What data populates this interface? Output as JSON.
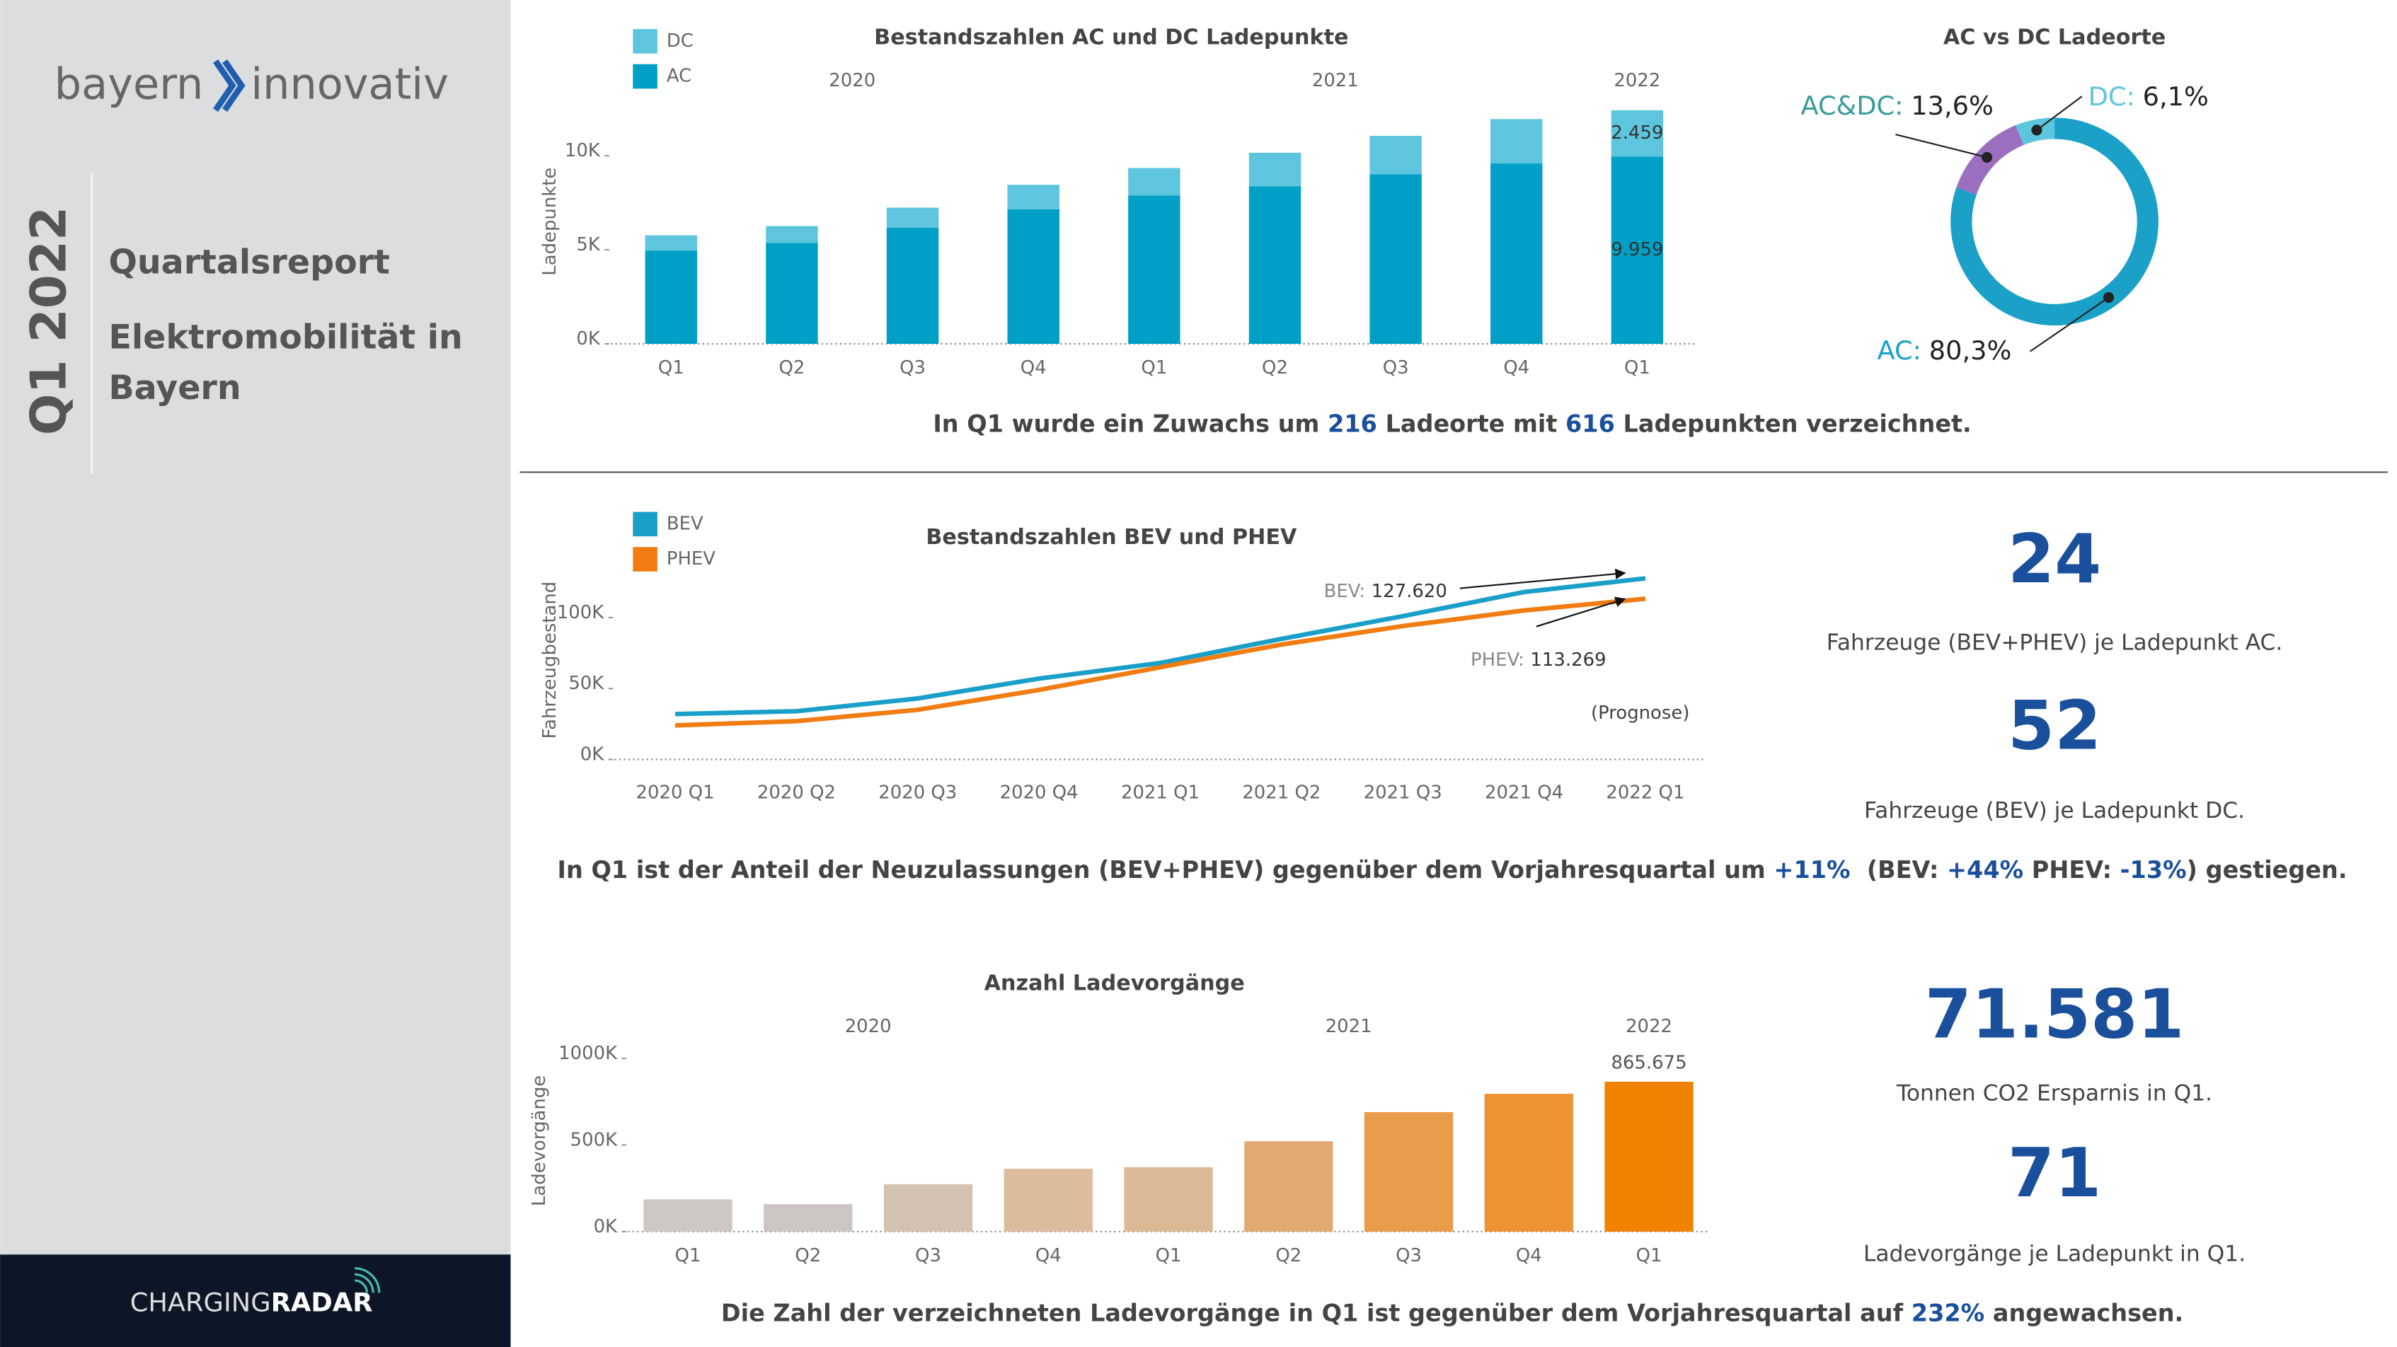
{
  "sidebar": {
    "logo_left": "bayern",
    "logo_right": "innovativ",
    "period": "Q1 2022",
    "report": "Quartalsreport",
    "subtitle_lines": [
      "Elektromobilität in",
      "Bayern"
    ],
    "footer_light": "CHARGING",
    "footer_bold": "RADAR"
  },
  "chart_data": [
    {
      "type": "bar",
      "stacked": true,
      "title": "Bestandszahlen AC und DC Ladepunkte",
      "y_label": "Ladepunkte",
      "groups": [
        "2020",
        "2021",
        "2022"
      ],
      "categories": [
        "Q1",
        "Q2",
        "Q3",
        "Q4",
        "Q1",
        "Q2",
        "Q3",
        "Q4",
        "Q1"
      ],
      "series": [
        {
          "name": "AC",
          "color": "#00a0c6",
          "values": [
            4960,
            5370,
            6180,
            7150,
            7890,
            8370,
            9020,
            9590,
            9959
          ],
          "value_labels": [
            null,
            null,
            null,
            null,
            null,
            null,
            null,
            null,
            "9.959"
          ]
        },
        {
          "name": "DC",
          "color": "#5ec5de",
          "values": [
            810,
            890,
            1060,
            1310,
            1460,
            1790,
            2040,
            2360,
            2459
          ],
          "value_labels": [
            null,
            null,
            null,
            null,
            null,
            null,
            null,
            null,
            "2.459"
          ]
        }
      ],
      "ylim": [
        0,
        13000
      ],
      "yticks": [
        {
          "value": 0,
          "label": "0K"
        },
        {
          "value": 5000,
          "label": "5K"
        },
        {
          "value": 10000,
          "label": "10K"
        }
      ]
    },
    {
      "type": "pie",
      "donut": true,
      "title": "AC vs DC Ladeorte",
      "categories": [
        "AC:",
        "AC&DC:",
        "DC:"
      ],
      "values": [
        80.3,
        13.6,
        6.1
      ],
      "value_labels": [
        "80,3%",
        "13,6%",
        "6,1%"
      ],
      "colors": [
        "#1ba0c8",
        "#9a6fc0",
        "#5ec5de"
      ],
      "label_colors": [
        "#1ba0c8",
        "#3a9a9a",
        "#5ec5de"
      ]
    },
    {
      "type": "line",
      "title": "Bestandszahlen BEV und PHEV",
      "y_label": "Fahrzeugbestand",
      "categories": [
        "2020 Q1",
        "2020 Q2",
        "2020 Q3",
        "2020 Q4",
        "2021 Q1",
        "2021 Q2",
        "2021 Q3",
        "2021 Q4",
        "2022 Q1"
      ],
      "series": [
        {
          "name": "BEV",
          "color": "#1a9fc9",
          "values": [
            32000,
            34000,
            43000,
            57000,
            68000,
            85000,
            101000,
            118000,
            127620
          ],
          "value_labels": [
            null,
            null,
            null,
            null,
            null,
            null,
            null,
            null,
            "127.620"
          ]
        },
        {
          "name": "PHEV",
          "color": "#f07c12",
          "values": [
            24000,
            27000,
            35000,
            49000,
            65000,
            81000,
            94000,
            105000,
            113269
          ],
          "value_labels": [
            null,
            null,
            null,
            null,
            null,
            null,
            null,
            null,
            "113.269"
          ]
        }
      ],
      "annotations": [
        "BEV:",
        "PHEV:"
      ],
      "note": "(Prognose)",
      "ylim": [
        0,
        140000
      ],
      "yticks": [
        {
          "value": 0,
          "label": "0K"
        },
        {
          "value": 50000,
          "label": "50K"
        },
        {
          "value": 100000,
          "label": "100K"
        }
      ]
    },
    {
      "type": "bar",
      "title": "Anzahl Ladevorgänge",
      "y_label": "Ladevorgänge",
      "groups": [
        "2020",
        "2021",
        "2022"
      ],
      "categories": [
        "Q1",
        "Q2",
        "Q3",
        "Q4",
        "Q1",
        "Q2",
        "Q3",
        "Q4",
        "Q1"
      ],
      "values": [
        186000,
        159000,
        274000,
        363000,
        372000,
        522000,
        690000,
        796000,
        865675
      ],
      "value_labels": [
        null,
        null,
        null,
        null,
        null,
        null,
        null,
        null,
        "865.675"
      ],
      "colors": [
        "#cdc8c4",
        "#cbc6c3",
        "#d4c3b3",
        "#dbbd9e",
        "#dcb995",
        "#e1aa70",
        "#e99c4a",
        "#ee9334",
        "#f08200"
      ],
      "ylim": [
        0,
        1050000
      ],
      "yticks": [
        {
          "value": 0,
          "label": "0K"
        },
        {
          "value": 500000,
          "label": "500K"
        },
        {
          "value": 1000000,
          "label": "1000K"
        }
      ]
    }
  ],
  "notes": [
    [
      "In Q1 wurde ein Zuwachs um ",
      "216",
      " Ladeorte mit ",
      "616",
      " Ladepunkten verzeichnet."
    ],
    [
      "In Q1 ist der Anteil der Neuzulassungen (BEV+PHEV) gegenüber dem Vorjahresquartal um ",
      "+11%",
      "  (BEV: ",
      "+44%",
      " PHEV: ",
      "-13%",
      ") gestiegen."
    ],
    [
      "Die Zahl der verzeichneten Ladevorgänge in Q1 ist gegenüber dem Vorjahresquartal auf ",
      "232%",
      " angewachsen."
    ]
  ],
  "kpis": [
    {
      "value": "24",
      "caption": "Fahrzeuge (BEV+PHEV) je Ladepunkt AC."
    },
    {
      "value": "52",
      "caption": "Fahrzeuge (BEV) je Ladepunkt DC."
    },
    {
      "value": "71.581",
      "caption": "Tonnen CO2 Ersparnis in Q1."
    },
    {
      "value": "71",
      "caption": "Ladevorgänge je Ladepunkt in Q1."
    }
  ]
}
